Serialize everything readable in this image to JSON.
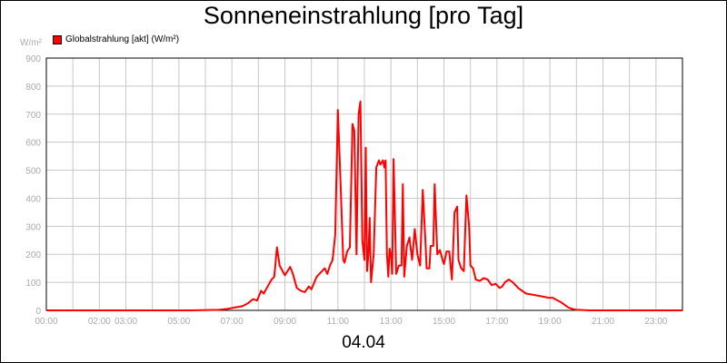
{
  "chart_data": {
    "type": "line",
    "title": "Sonneneinstrahlung [pro Tag]",
    "unit_label": "W/m²",
    "date_label": "04.04",
    "legend_position": "top-left",
    "grid": true,
    "ylim": [
      0,
      900
    ],
    "yticks": [
      "0",
      "100",
      "200",
      "300",
      "400",
      "500",
      "600",
      "700",
      "800",
      "900"
    ],
    "xlim": [
      0,
      24
    ],
    "xticks": [
      {
        "h": 0,
        "label": "00:00"
      },
      {
        "h": 2,
        "label": "02:00"
      },
      {
        "h": 3,
        "label": "03:00"
      },
      {
        "h": 5,
        "label": "05:00"
      },
      {
        "h": 7,
        "label": "07:00"
      },
      {
        "h": 9,
        "label": "09:00"
      },
      {
        "h": 11,
        "label": "11:00"
      },
      {
        "h": 13,
        "label": "13:00"
      },
      {
        "h": 15,
        "label": "15:00"
      },
      {
        "h": 17,
        "label": "17:00"
      },
      {
        "h": 19,
        "label": "19:00"
      },
      {
        "h": 21,
        "label": "21:00"
      },
      {
        "h": 23,
        "label": "23:00"
      }
    ],
    "series": [
      {
        "name": "Globalstrahlung [akt] (W/m²)",
        "color": "#ff0000",
        "points": [
          [
            0,
            0
          ],
          [
            5.5,
            0
          ],
          [
            6.5,
            2
          ],
          [
            6.8,
            5
          ],
          [
            7.1,
            10
          ],
          [
            7.4,
            15
          ],
          [
            7.6,
            25
          ],
          [
            7.8,
            40
          ],
          [
            7.95,
            35
          ],
          [
            8.1,
            70
          ],
          [
            8.2,
            60
          ],
          [
            8.35,
            85
          ],
          [
            8.5,
            110
          ],
          [
            8.6,
            120
          ],
          [
            8.7,
            225
          ],
          [
            8.8,
            160
          ],
          [
            9.0,
            125
          ],
          [
            9.2,
            155
          ],
          [
            9.3,
            130
          ],
          [
            9.45,
            80
          ],
          [
            9.6,
            70
          ],
          [
            9.75,
            65
          ],
          [
            9.9,
            85
          ],
          [
            10.0,
            75
          ],
          [
            10.2,
            120
          ],
          [
            10.4,
            140
          ],
          [
            10.5,
            150
          ],
          [
            10.6,
            130
          ],
          [
            10.7,
            160
          ],
          [
            10.8,
            180
          ],
          [
            10.9,
            270
          ],
          [
            11.0,
            715
          ],
          [
            11.1,
            450
          ],
          [
            11.2,
            180
          ],
          [
            11.25,
            170
          ],
          [
            11.35,
            210
          ],
          [
            11.45,
            225
          ],
          [
            11.55,
            665
          ],
          [
            11.62,
            640
          ],
          [
            11.7,
            200
          ],
          [
            11.78,
            700
          ],
          [
            11.85,
            745
          ],
          [
            11.92,
            250
          ],
          [
            12.0,
            180
          ],
          [
            12.05,
            580
          ],
          [
            12.1,
            140
          ],
          [
            12.15,
            200
          ],
          [
            12.2,
            330
          ],
          [
            12.25,
            100
          ],
          [
            12.35,
            200
          ],
          [
            12.45,
            510
          ],
          [
            12.55,
            535
          ],
          [
            12.6,
            520
          ],
          [
            12.7,
            535
          ],
          [
            12.75,
            510
          ],
          [
            12.8,
            535
          ],
          [
            12.85,
            200
          ],
          [
            12.9,
            120
          ],
          [
            12.95,
            220
          ],
          [
            13.0,
            200
          ],
          [
            13.05,
            130
          ],
          [
            13.1,
            540
          ],
          [
            13.2,
            130
          ],
          [
            13.3,
            160
          ],
          [
            13.4,
            160
          ],
          [
            13.45,
            450
          ],
          [
            13.5,
            120
          ],
          [
            13.6,
            230
          ],
          [
            13.7,
            260
          ],
          [
            13.75,
            220
          ],
          [
            13.8,
            180
          ],
          [
            13.9,
            290
          ],
          [
            14.0,
            200
          ],
          [
            14.1,
            160
          ],
          [
            14.2,
            430
          ],
          [
            14.3,
            250
          ],
          [
            14.35,
            150
          ],
          [
            14.45,
            150
          ],
          [
            14.5,
            230
          ],
          [
            14.6,
            230
          ],
          [
            14.65,
            450
          ],
          [
            14.75,
            200
          ],
          [
            14.85,
            215
          ],
          [
            14.95,
            180
          ],
          [
            15.0,
            165
          ],
          [
            15.1,
            210
          ],
          [
            15.2,
            210
          ],
          [
            15.3,
            110
          ],
          [
            15.4,
            350
          ],
          [
            15.5,
            370
          ],
          [
            15.55,
            180
          ],
          [
            15.65,
            150
          ],
          [
            15.75,
            140
          ],
          [
            15.85,
            410
          ],
          [
            15.95,
            300
          ],
          [
            16.0,
            160
          ],
          [
            16.1,
            150
          ],
          [
            16.2,
            110
          ],
          [
            16.35,
            105
          ],
          [
            16.5,
            115
          ],
          [
            16.65,
            110
          ],
          [
            16.8,
            90
          ],
          [
            16.95,
            95
          ],
          [
            17.1,
            80
          ],
          [
            17.2,
            85
          ],
          [
            17.3,
            100
          ],
          [
            17.45,
            110
          ],
          [
            17.6,
            100
          ],
          [
            17.8,
            80
          ],
          [
            17.95,
            70
          ],
          [
            18.1,
            60
          ],
          [
            18.4,
            55
          ],
          [
            18.7,
            50
          ],
          [
            18.95,
            45
          ],
          [
            19.1,
            45
          ],
          [
            19.4,
            30
          ],
          [
            19.7,
            10
          ],
          [
            19.85,
            5
          ],
          [
            20.0,
            2
          ],
          [
            20.5,
            0
          ],
          [
            24,
            0
          ]
        ]
      }
    ]
  }
}
